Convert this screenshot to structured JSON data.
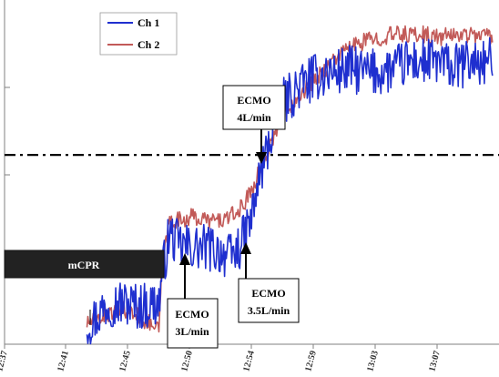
{
  "chart_data": {
    "type": "line",
    "title": "",
    "xlabel": "",
    "ylabel": "",
    "grid": false,
    "legend_position": "top-left",
    "x_tick_labels": [
      "12:37",
      "12:41",
      "12:45",
      "12:50",
      "12:54",
      "12:59",
      "13:03",
      "13:07"
    ],
    "x_range_minutes": [
      0,
      33
    ],
    "y_range": [
      0,
      100
    ],
    "threshold_line": {
      "y": 55,
      "style": "dash-dot",
      "color": "#000000"
    },
    "series": [
      {
        "name": "Ch 1",
        "color": "#1f2fcf",
        "noise": 7,
        "x_minutes": [
          5.5,
          6.2,
          6.5,
          7.0,
          8.0,
          9.0,
          10.3,
          10.5,
          11.0,
          11.6,
          12.5,
          13.5,
          14.5,
          15.0,
          15.5,
          16.0,
          16.5,
          17.0,
          17.5,
          18.0,
          18.5,
          19.0,
          19.5,
          20.0,
          20.5,
          21.0,
          21.5,
          22.0,
          23.0,
          24.0,
          25.0,
          26.0,
          27.0,
          28.0,
          29.0,
          30.0,
          31.0,
          32.0,
          32.6
        ],
        "values": [
          6,
          8,
          10,
          12,
          12,
          11,
          12,
          20,
          32,
          29,
          28,
          28,
          27,
          25,
          27,
          31,
          37,
          48,
          56,
          64,
          70,
          72,
          74,
          76,
          77,
          78,
          79,
          79,
          80,
          79,
          79,
          80,
          82,
          82,
          82,
          80,
          82,
          82,
          82
        ]
      },
      {
        "name": "Ch 2",
        "color": "#c25a58",
        "noise": 2.5,
        "x_minutes": [
          5.5,
          6.5,
          7.0,
          8.0,
          9.0,
          10.0,
          10.3,
          10.5,
          11.0,
          11.6,
          12.5,
          13.5,
          14.5,
          15.0,
          15.5,
          16.0,
          16.5,
          17.0,
          17.5,
          18.0,
          18.5,
          19.0,
          19.5,
          20.0,
          21.0,
          22.0,
          23.0,
          24.0,
          25.0,
          26.0,
          27.0,
          28.0,
          29.0,
          30.0,
          31.0,
          32.0,
          32.6
        ],
        "values": [
          6,
          8,
          9,
          10,
          8,
          5,
          4,
          22,
          36,
          36,
          37,
          36,
          36,
          37,
          38,
          41,
          45,
          50,
          55,
          61,
          66,
          69,
          72,
          74,
          78,
          83,
          86,
          88,
          89,
          90,
          90,
          90,
          89,
          90,
          90,
          90,
          89
        ]
      }
    ],
    "annotations": [
      {
        "label_lines": [
          "ECMO",
          "4L/min"
        ],
        "x_minutes": 17.2
      },
      {
        "label_lines": [
          "ECMO",
          "3L/min"
        ],
        "x_minutes": 12.0
      },
      {
        "label_lines": [
          "ECMO",
          "3.5L/min"
        ],
        "x_minutes": 16.3
      }
    ],
    "mcpr_bar": {
      "label": "mCPR",
      "x_start_minutes": 0,
      "x_end_minutes": 10.3
    }
  }
}
